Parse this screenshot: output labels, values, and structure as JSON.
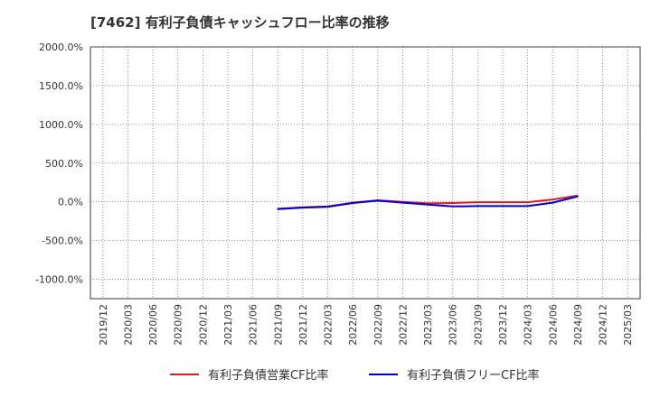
{
  "chart_data": {
    "type": "line",
    "title": "[7462]  有利子負債キャッシュフロー比率の推移",
    "xlabel": "",
    "ylabel": "",
    "ylim": [
      -1250,
      2000
    ],
    "y_ticks": [
      2000,
      1500,
      1000,
      500,
      0,
      -500,
      -1000
    ],
    "y_tick_labels": [
      "2000.0%",
      "1500.0%",
      "1000.0%",
      "500.0%",
      "0.0%",
      "-500.0%",
      "-1000.0%"
    ],
    "x_ticks": [
      "2019/12",
      "2020/03",
      "2020/06",
      "2020/09",
      "2020/12",
      "2021/03",
      "2021/06",
      "2021/09",
      "2021/12",
      "2022/03",
      "2022/06",
      "2022/09",
      "2022/12",
      "2023/03",
      "2023/06",
      "2023/09",
      "2023/12",
      "2024/03",
      "2024/06",
      "2024/09",
      "2024/12",
      "2025/03"
    ],
    "grid": true,
    "legend_position": "bottom",
    "series": [
      {
        "name": "有利子負債営業CF比率",
        "color": "#e31a1c",
        "x": [
          "2021/09",
          "2021/12",
          "2022/03",
          "2022/06",
          "2022/09",
          "2022/12",
          "2023/03",
          "2023/06",
          "2023/09",
          "2023/12",
          "2024/03",
          "2024/06",
          "2024/09"
        ],
        "values": [
          -90,
          -70,
          -60,
          -10,
          20,
          0,
          -20,
          -15,
          -5,
          -5,
          -5,
          30,
          80
        ]
      },
      {
        "name": "有利子負債フリーCF比率",
        "color": "#0000cc",
        "x": [
          "2021/09",
          "2021/12",
          "2022/03",
          "2022/06",
          "2022/09",
          "2022/12",
          "2023/03",
          "2023/06",
          "2023/09",
          "2023/12",
          "2024/03",
          "2024/06",
          "2024/09"
        ],
        "values": [
          -95,
          -75,
          -65,
          -15,
          15,
          -10,
          -35,
          -60,
          -55,
          -55,
          -55,
          -10,
          70
        ]
      }
    ]
  }
}
